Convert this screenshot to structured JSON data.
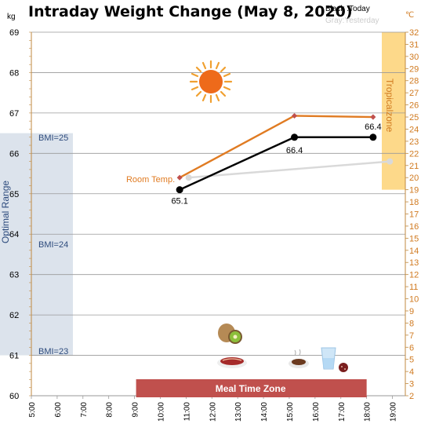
{
  "header": {
    "title": "Intraday Weight Change (May 8, 2020)",
    "left_unit": "kg",
    "right_unit": "℃",
    "legend_today": "Black :Today",
    "legend_yesterday": "Gray:Yesterday"
  },
  "bands": {
    "optimal_range_label": "Optimal Range",
    "tropical_zone_label": "Tropicalzone",
    "meal_time_zone_label": "Meal Time Zone"
  },
  "bmi_labels": [
    {
      "text": "BMI=25",
      "kg": 66.5
    },
    {
      "text": "BMI=24",
      "kg": 63.8
    },
    {
      "text": "BMI=23",
      "kg": 61.1
    }
  ],
  "room_temp_label": "Room Temp.",
  "icons": [
    "sun-icon",
    "kiwi-icon",
    "steak-icon",
    "soup-icon",
    "water-glass-icon",
    "sausage-icon"
  ],
  "colors": {
    "today": "#000000",
    "yesterday": "#d9d9d9",
    "room_temp": "#e07b22",
    "optimal_band": "#dce3ec",
    "tropical_band": "#fdd98a",
    "meal_zone": "#c0504d",
    "axis_right": "#d07a20"
  },
  "chart_data": {
    "type": "line",
    "title": "Intraday Weight Change (May 8, 2020)",
    "x_ticks": [
      "5:00",
      "6:00",
      "7:00",
      "8:00",
      "9:00",
      "10:00",
      "11:00",
      "12:00",
      "13:00",
      "14:00",
      "15:00",
      "16:00",
      "17:00",
      "18:00",
      "19:00"
    ],
    "y_left": {
      "label": "kg",
      "min": 60,
      "max": 69,
      "ticks": [
        60,
        61,
        62,
        63,
        64,
        65,
        66,
        67,
        68,
        69
      ]
    },
    "y_right": {
      "label": "℃",
      "min": 2,
      "max": 32,
      "ticks": [
        2,
        3,
        4,
        5,
        6,
        7,
        8,
        9,
        10,
        11,
        12,
        13,
        14,
        15,
        16,
        17,
        18,
        19,
        20,
        21,
        22,
        23,
        24,
        25,
        26,
        27,
        28,
        29,
        30,
        31,
        32
      ]
    },
    "optimal_range": {
      "from_kg": 61,
      "to_kg": 66.5
    },
    "tropical_zone": {
      "from_c": 19,
      "to_c": 32
    },
    "meal_time_zone": {
      "from": 9.0,
      "to": 18.0
    },
    "series": [
      {
        "name": "Today",
        "axis": "left",
        "color": "#000000",
        "points": [
          {
            "x": 10.75,
            "y": 65.1,
            "label": "65.1"
          },
          {
            "x": 15.2,
            "y": 66.4,
            "label": "66.4"
          },
          {
            "x": 18.25,
            "y": 66.4,
            "label": "66.4"
          }
        ]
      },
      {
        "name": "Yesterday",
        "axis": "left",
        "color": "#d9d9d9",
        "points": [
          {
            "x": 11.1,
            "y": 65.4
          },
          {
            "x": 18.9,
            "y": 65.8
          }
        ]
      },
      {
        "name": "Room Temp.",
        "axis": "right",
        "color": "#e07b22",
        "points": [
          {
            "x": 10.75,
            "y": 20.0
          },
          {
            "x": 15.2,
            "y": 25.1
          },
          {
            "x": 18.25,
            "y": 25.0
          }
        ]
      }
    ]
  }
}
